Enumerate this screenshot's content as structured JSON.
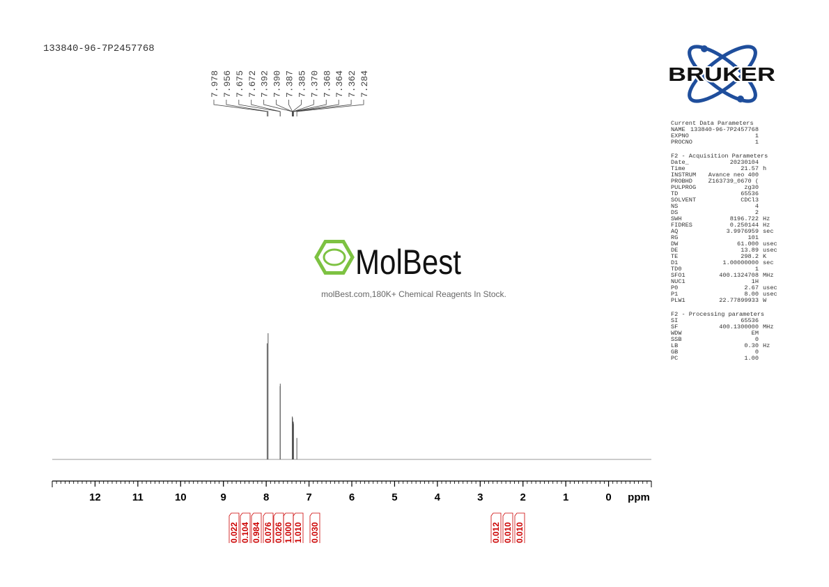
{
  "header": {
    "sample_id": "133840-96-7P2457768"
  },
  "watermark": {
    "brand": "MolBest",
    "tagline": "molBest.com,180K+ Chemical Reagents In Stock."
  },
  "logo": {
    "text": "BRUKER"
  },
  "chart_data": {
    "type": "nmr",
    "xlabel": "ppm",
    "xlim": [
      13,
      -1
    ],
    "xticks": [
      12,
      11,
      10,
      9,
      8,
      7,
      6,
      5,
      4,
      3,
      2,
      1,
      0
    ],
    "peak_labels": [
      7.978,
      7.956,
      7.675,
      7.672,
      7.392,
      {
        "value": 7.39,
        "label": "7.390"
      },
      7.387,
      7.385,
      {
        "value": 7.37,
        "label": "7.370"
      },
      7.368,
      7.364,
      7.362,
      7.284
    ],
    "x": [
      7.978,
      7.956,
      7.675,
      7.672,
      7.392,
      7.39,
      7.387,
      7.385,
      7.37,
      7.368,
      7.364,
      7.362,
      7.284
    ],
    "values": [
      92,
      100,
      58,
      60,
      33,
      34,
      32,
      33,
      28,
      30,
      29,
      28,
      17
    ],
    "color": "#555555",
    "integrals": {
      "values": [
        0.022,
        0.104,
        0.984,
        0.076,
        0.026,
        1.0,
        1.01,
        0.03,
        0.012,
        0.01,
        0.01
      ],
      "value_labels": [
        "0.022",
        "0.104",
        "0.984",
        "0.076",
        "0.026",
        "1.000",
        "1.010",
        "0.030",
        "0.012",
        "0.010",
        "0.010"
      ],
      "color": "#cc0000"
    }
  },
  "parameters": [
    {
      "title": "Current Data Parameters",
      "rows": [
        [
          "NAME",
          "133840-96-7P2457768"
        ],
        [
          "EXPNO",
          "1"
        ],
        [
          "PROCNO",
          "1"
        ]
      ]
    },
    {
      "title": "F2 - Acquisition Parameters",
      "rows": [
        [
          "Date_",
          "20230104"
        ],
        [
          "Time",
          "21.57",
          "h"
        ],
        [
          "INSTRUM",
          "Avance neo 400"
        ],
        [
          "PROBHD",
          "Z163739_0670 ("
        ],
        [
          "PULPROG",
          "zg30"
        ],
        [
          "TD",
          "65536"
        ],
        [
          "SOLVENT",
          "CDCl3"
        ],
        [
          "NS",
          "4"
        ],
        [
          "DS",
          "2"
        ],
        [
          "SWH",
          "8196.722",
          "Hz"
        ],
        [
          "FIDRES",
          "0.250144",
          "Hz"
        ],
        [
          "AQ",
          "3.9976959",
          "sec"
        ],
        [
          "RG",
          "101"
        ],
        [
          "DW",
          "61.000",
          "usec"
        ],
        [
          "DE",
          "13.89",
          "usec"
        ],
        [
          "TE",
          "298.2",
          "K"
        ],
        [
          "D1",
          "1.00000000",
          "sec"
        ],
        [
          "TD0",
          "1"
        ],
        [
          "SFO1",
          "400.1324708",
          "MHz"
        ],
        [
          "NUC1",
          "1H"
        ],
        [
          "P0",
          "2.67",
          "usec"
        ],
        [
          "P1",
          "8.00",
          "usec"
        ],
        [
          "PLW1",
          "22.77899933",
          "W"
        ]
      ]
    },
    {
      "title": "F2 - Processing parameters",
      "rows": [
        [
          "SI",
          "65536"
        ],
        [
          "SF",
          "400.1300000",
          "MHz"
        ],
        [
          "WDW",
          "EM"
        ],
        [
          "SSB",
          "0"
        ],
        [
          "LB",
          "0.30",
          "Hz"
        ],
        [
          "GB",
          "0"
        ],
        [
          "PC",
          "1.00"
        ]
      ]
    }
  ]
}
